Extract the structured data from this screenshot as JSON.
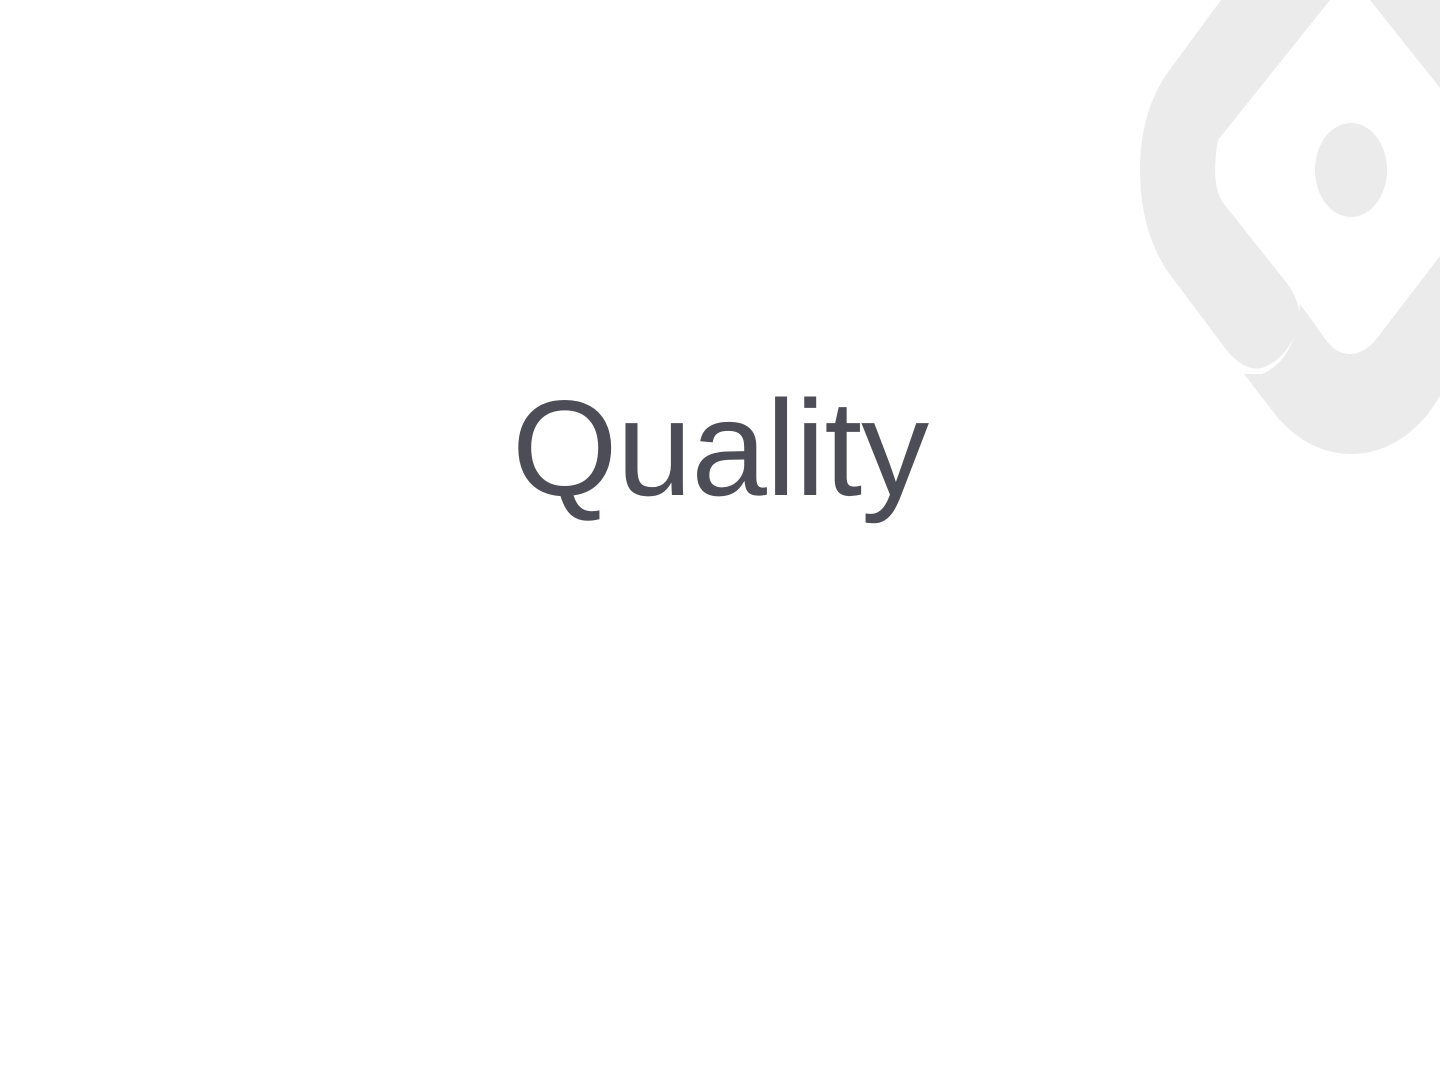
{
  "slide": {
    "title": "Quality"
  },
  "watermark": {
    "icon": "diamond-ring-logo-icon",
    "color": "#ebebeb"
  },
  "colors": {
    "background": "#ffffff",
    "title": "#4d4d57"
  }
}
